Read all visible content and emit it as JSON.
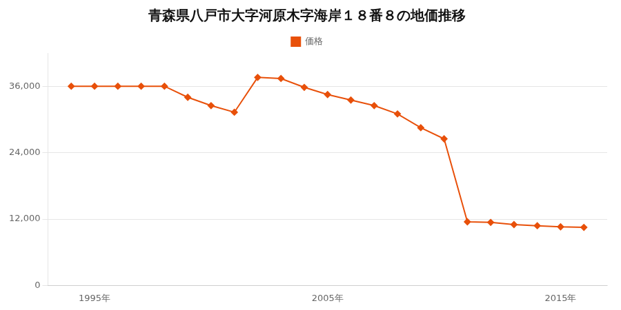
{
  "chart_data": {
    "type": "line",
    "title": "青森県八戸市大字河原木字海岸１８番８の地価推移",
    "x": [
      1994,
      1995,
      1996,
      1997,
      1998,
      1999,
      2000,
      2001,
      2002,
      2003,
      2004,
      2005,
      2006,
      2007,
      2008,
      2009,
      2010,
      2011,
      2012,
      2013,
      2014,
      2015,
      2016
    ],
    "series": [
      {
        "name": "価格",
        "color": "#E8500A",
        "marker": "diamond",
        "values": [
          36000,
          36000,
          36000,
          36000,
          36000,
          34000,
          32500,
          31300,
          37600,
          37400,
          35800,
          34500,
          33500,
          32500,
          31000,
          28500,
          26500,
          11500,
          11400,
          11000,
          10800,
          10600,
          10500
        ]
      }
    ],
    "xlim": [
      1993,
      2017
    ],
    "xticks": [
      {
        "value": 1995,
        "label": "1995年"
      },
      {
        "value": 2005,
        "label": "2005年"
      },
      {
        "value": 2015,
        "label": "2015年"
      }
    ],
    "ylim": [
      0,
      42000
    ],
    "yticks": [
      0,
      {
        "value": 12000,
        "label": "12,000"
      },
      {
        "value": 24000,
        "label": "24,000"
      },
      {
        "value": 36000,
        "label": "36,000"
      }
    ],
    "grid": "y",
    "legend": "top"
  }
}
